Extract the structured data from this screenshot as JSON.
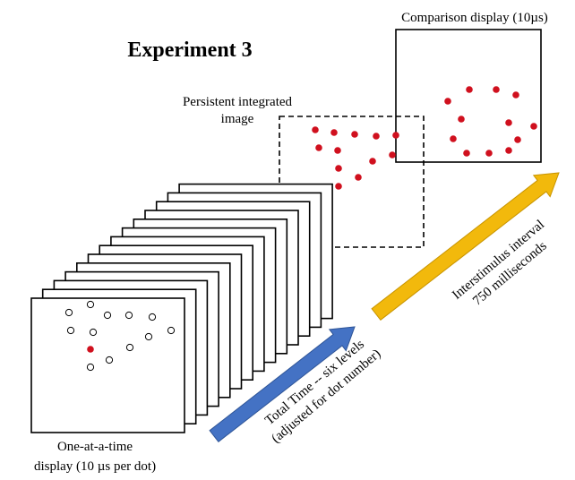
{
  "title": "Experiment 3",
  "comparison_label": "Comparison display (10µs)",
  "persistent_label_line1": "Persistent integrated",
  "persistent_label_line2": "image",
  "one_at_a_time_line1": "One-at-a-time",
  "one_at_a_time_line2": "display (10 µs per dot)",
  "total_time_line1": "Total Time -- six levels",
  "total_time_line2": "(adjusted for dot number)",
  "isi_line1": "Interstimulus interval",
  "isi_line2": "750 milliseconds",
  "colors": {
    "dot_red": "#d0101e",
    "blue_arrow": "#4472c4",
    "yellow_arrow": "#f2b90c",
    "line": "#000000"
  },
  "icons": {
    "blue_arrow": "right-up-arrow-icon",
    "yellow_arrow": "right-up-arrow-icon"
  },
  "stack_frame_count": 14
}
